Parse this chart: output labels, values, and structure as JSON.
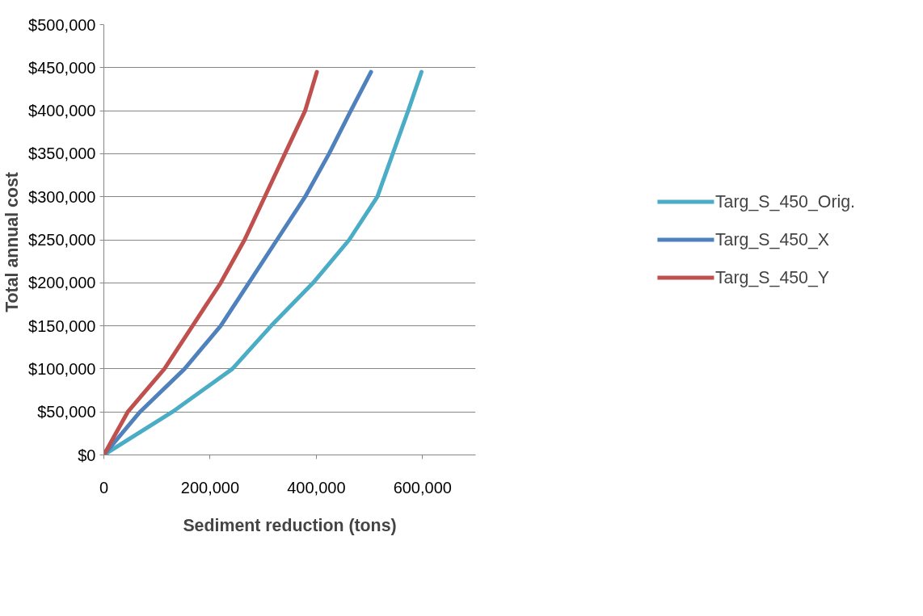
{
  "chart_data": {
    "type": "line",
    "xlabel": "Sediment reduction (tons)",
    "ylabel": "Total annual  cost",
    "xlim": [
      0,
      700000
    ],
    "xticks": [
      {
        "value": 0,
        "label": "0"
      },
      {
        "value": 200000,
        "label": "200,000"
      },
      {
        "value": 400000,
        "label": "400,000"
      },
      {
        "value": 600000,
        "label": "600,000"
      }
    ],
    "ylim": [
      0,
      500000
    ],
    "yticks": [
      {
        "value": 0,
        "label": "$0"
      },
      {
        "value": 50000,
        "label": "$50,000"
      },
      {
        "value": 100000,
        "label": "$100,000"
      },
      {
        "value": 150000,
        "label": "$150,000"
      },
      {
        "value": 200000,
        "label": "$200,000"
      },
      {
        "value": 250000,
        "label": "$250,000"
      },
      {
        "value": 300000,
        "label": "$300,000"
      },
      {
        "value": 350000,
        "label": "$350,000"
      },
      {
        "value": 400000,
        "label": "$400,000"
      },
      {
        "value": 450000,
        "label": "$450,000"
      },
      {
        "value": 500000,
        "label": "$500,000"
      }
    ],
    "grid": "y",
    "legend": "right",
    "marker": "none",
    "line_style": "solid",
    "series": [
      {
        "name": "Targ_S_450_Orig.",
        "color": "#4bacc6",
        "x": [
          0,
          129000,
          242000,
          315000,
          394000,
          462000,
          515000,
          544000,
          573000,
          598000
        ],
        "values": [
          0,
          50000,
          100000,
          150000,
          200000,
          250000,
          300000,
          350000,
          400000,
          445000
        ]
      },
      {
        "name": "Targ_S_450_X",
        "color": "#4f81bd",
        "x": [
          0,
          68000,
          152000,
          220000,
          273000,
          326000,
          379000,
          424000,
          465000,
          503000
        ],
        "values": [
          0,
          50000,
          100000,
          150000,
          200000,
          250000,
          300000,
          350000,
          400000,
          445000
        ]
      },
      {
        "name": "Targ_S_450_Y",
        "color": "#c0504d",
        "x": [
          0,
          45000,
          114000,
          167000,
          220000,
          265000,
          303000,
          341000,
          379000,
          401000
        ],
        "values": [
          0,
          50000,
          100000,
          150000,
          200000,
          250000,
          300000,
          350000,
          400000,
          445000
        ]
      }
    ]
  }
}
